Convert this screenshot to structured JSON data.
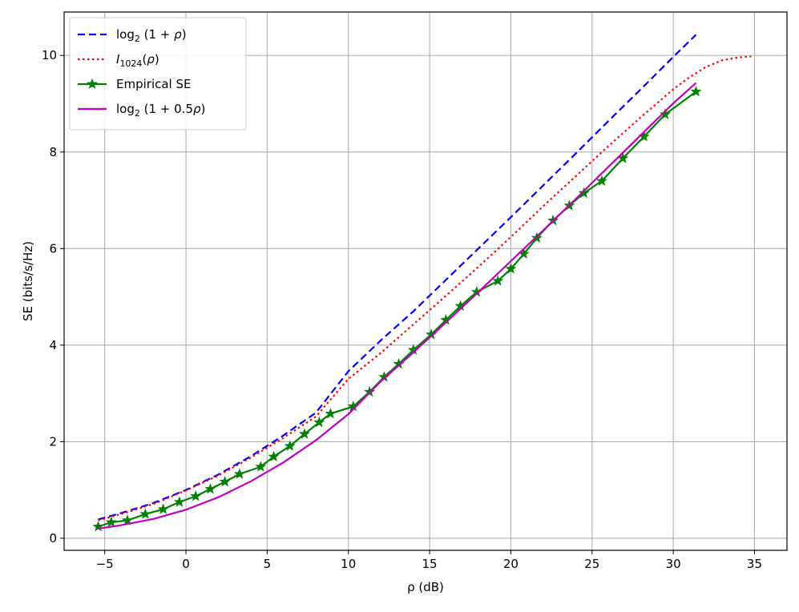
{
  "chart_data": {
    "type": "line",
    "xlabel": "ρ (dB)",
    "ylabel": "SE (bits/s/Hz)",
    "xlim": [
      -7.5,
      37
    ],
    "ylim": [
      -0.25,
      10.9
    ],
    "xticks": [
      -5,
      0,
      5,
      10,
      15,
      20,
      25,
      30,
      35
    ],
    "yticks": [
      0,
      2,
      4,
      6,
      8,
      10
    ],
    "xtick_labels": [
      "−5",
      "0",
      "5",
      "10",
      "15",
      "20",
      "25",
      "30",
      "35"
    ],
    "ytick_labels": [
      "0",
      "2",
      "4",
      "6",
      "8",
      "10"
    ],
    "grid": true,
    "legend_position": "top-left",
    "series": [
      {
        "key": "log2_1_rho",
        "name_parts": [
          "log",
          "2",
          " (1 + ",
          "ρ",
          ")"
        ],
        "color": "#0000ff",
        "style": "dashed",
        "x": [
          -5.4,
          -4,
          -2,
          0,
          2,
          4,
          6,
          8,
          10,
          12,
          14,
          16,
          18,
          20,
          22,
          24,
          26,
          28,
          30,
          31.4
        ],
        "y": [
          0.39,
          0.52,
          0.73,
          1.0,
          1.32,
          1.7,
          2.13,
          2.6,
          3.46,
          4.1,
          4.7,
          5.35,
          6.0,
          6.65,
          7.31,
          7.97,
          8.64,
          9.3,
          9.97,
          10.43
        ]
      },
      {
        "key": "i1024",
        "name_parts": [
          "I",
          "1024",
          "(",
          "ρ",
          ")"
        ],
        "color": "#ff0000",
        "style": "dotted",
        "x": [
          -5.4,
          -4,
          -2,
          0,
          2,
          4,
          6,
          8,
          10,
          12,
          14,
          16,
          18,
          20,
          22,
          24,
          26,
          28,
          30,
          31,
          32,
          33,
          34,
          34.8
        ],
        "y": [
          0.37,
          0.5,
          0.71,
          0.99,
          1.3,
          1.67,
          2.08,
          2.52,
          3.3,
          3.84,
          4.43,
          5.02,
          5.62,
          6.24,
          6.88,
          7.5,
          8.12,
          8.72,
          9.3,
          9.55,
          9.76,
          9.9,
          9.96,
          9.98
        ]
      },
      {
        "key": "empirical",
        "name_parts": [
          "Empirical SE"
        ],
        "color": "#008000",
        "style": "solid",
        "marker": "star",
        "x": [
          -5.4,
          -4.6,
          -3.6,
          -2.5,
          -1.4,
          -0.4,
          0.6,
          1.5,
          2.4,
          3.3,
          4.6,
          5.4,
          6.4,
          7.3,
          8.2,
          8.9,
          10.3,
          11.3,
          12.2,
          13.1,
          14.0,
          15.1,
          16.0,
          16.9,
          17.9,
          19.2,
          20.0,
          20.8,
          21.6,
          22.6,
          23.6,
          24.5,
          25.6,
          26.9,
          28.2,
          29.5,
          31.4
        ],
        "y": [
          0.24,
          0.33,
          0.37,
          0.5,
          0.6,
          0.75,
          0.87,
          1.02,
          1.17,
          1.33,
          1.48,
          1.69,
          1.91,
          2.16,
          2.4,
          2.58,
          2.73,
          3.03,
          3.34,
          3.61,
          3.9,
          4.22,
          4.52,
          4.81,
          5.1,
          5.33,
          5.58,
          5.89,
          6.22,
          6.58,
          6.89,
          7.15,
          7.4,
          7.87,
          8.32,
          8.78,
          9.25
        ]
      },
      {
        "key": "log2_1_half_rho",
        "name_parts": [
          "log",
          "2",
          " (1 + 0.5",
          "ρ",
          ")"
        ],
        "color": "#bf00bf",
        "style": "solid",
        "x": [
          -5.4,
          -4,
          -2,
          0,
          2,
          4,
          6,
          8,
          10,
          12,
          14,
          16,
          18,
          20,
          22,
          24,
          26,
          28,
          30,
          31.4
        ],
        "y": [
          0.2,
          0.27,
          0.4,
          0.59,
          0.85,
          1.18,
          1.57,
          2.03,
          2.57,
          3.25,
          3.85,
          4.47,
          5.1,
          5.74,
          6.38,
          7.03,
          7.69,
          8.35,
          9.01,
          9.43
        ]
      }
    ]
  },
  "colors": {
    "grid": "#b0b0b0",
    "axes": "#000000",
    "background": "#ffffff"
  }
}
